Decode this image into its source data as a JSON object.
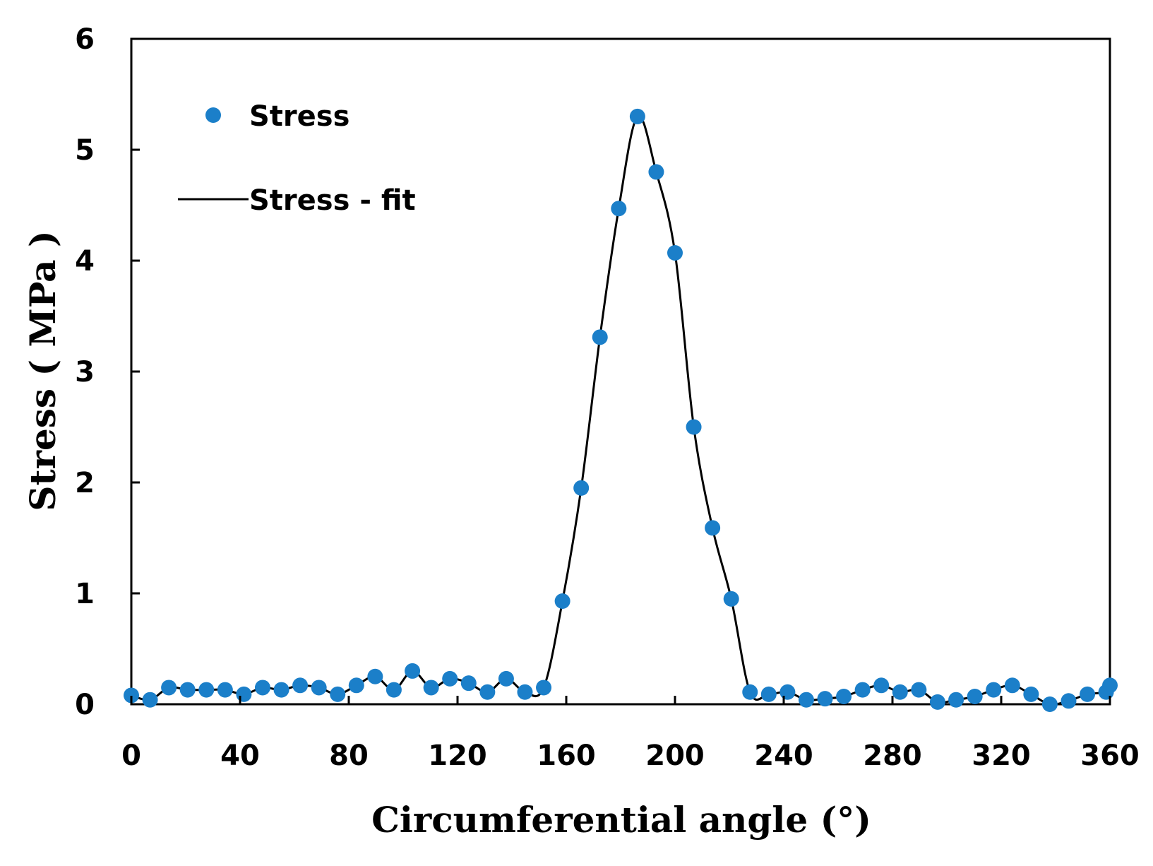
{
  "chart_data": {
    "type": "scatter",
    "title": "",
    "xlabel": "Circumferential angle (°)",
    "ylabel": "Stress ( MPa )",
    "xlim": [
      0,
      360
    ],
    "ylim": [
      0,
      6
    ],
    "xticks": [
      "0",
      "40",
      "80",
      "120",
      "160",
      "200",
      "240",
      "280",
      "320",
      "360"
    ],
    "yticks": [
      "0",
      "1",
      "2",
      "3",
      "4",
      "5",
      "6"
    ],
    "grid": false,
    "legend_position": "top-left",
    "colors": {
      "points": "#1b7fc9",
      "line": "#000000",
      "axes": "#000000"
    },
    "series": [
      {
        "name": "Stress",
        "kind": "scatter",
        "x": [
          0,
          6.9,
          13.8,
          20.7,
          27.6,
          34.5,
          41.4,
          48.3,
          55.2,
          62.1,
          69.0,
          75.9,
          82.8,
          89.7,
          96.6,
          103.4,
          110.3,
          117.2,
          124.1,
          131.0,
          137.9,
          144.8,
          151.7,
          158.6,
          165.5,
          172.4,
          179.3,
          186.2,
          193.1,
          200.0,
          206.9,
          213.8,
          220.7,
          227.6,
          234.5,
          241.4,
          248.3,
          255.2,
          262.1,
          269.0,
          275.9,
          282.8,
          289.7,
          296.6,
          303.4,
          310.3,
          317.2,
          324.1,
          331.0,
          337.9,
          344.8,
          351.7,
          358.6,
          360
        ],
        "y": [
          0.08,
          0.04,
          0.15,
          0.13,
          0.13,
          0.13,
          0.09,
          0.15,
          0.13,
          0.17,
          0.15,
          0.09,
          0.17,
          0.25,
          0.13,
          0.3,
          0.15,
          0.23,
          0.19,
          0.11,
          0.23,
          0.11,
          0.15,
          0.93,
          1.95,
          3.31,
          4.47,
          5.3,
          4.8,
          4.07,
          2.5,
          1.59,
          0.95,
          0.11,
          0.09,
          0.11,
          0.04,
          0.05,
          0.07,
          0.13,
          0.17,
          0.11,
          0.13,
          0.02,
          0.04,
          0.07,
          0.13,
          0.17,
          0.09,
          0.0,
          0.03,
          0.09,
          0.11,
          0.17
        ]
      },
      {
        "name": "Stress - fit",
        "kind": "line",
        "x": [
          0,
          6.9,
          13.8,
          20.7,
          27.6,
          34.5,
          41.4,
          48.3,
          55.2,
          62.1,
          69.0,
          75.9,
          82.8,
          89.7,
          96.6,
          103.4,
          110.3,
          117.2,
          124.1,
          131.0,
          137.9,
          144.8,
          151.7,
          158.6,
          165.5,
          172.4,
          179.3,
          186.2,
          193.1,
          200.0,
          206.9,
          213.8,
          220.7,
          227.6,
          234.5,
          241.4,
          248.3,
          255.2,
          262.1,
          269.0,
          275.9,
          282.8,
          289.7,
          296.6,
          303.4,
          310.3,
          317.2,
          324.1,
          331.0,
          337.9,
          344.8,
          351.7,
          358.6,
          360
        ],
        "y": [
          0.08,
          0.04,
          0.15,
          0.13,
          0.13,
          0.13,
          0.09,
          0.15,
          0.13,
          0.17,
          0.15,
          0.09,
          0.17,
          0.25,
          0.13,
          0.3,
          0.15,
          0.23,
          0.19,
          0.11,
          0.23,
          0.11,
          0.15,
          0.93,
          1.95,
          3.31,
          4.47,
          5.3,
          4.8,
          4.07,
          2.5,
          1.59,
          0.95,
          0.11,
          0.09,
          0.11,
          0.04,
          0.05,
          0.07,
          0.13,
          0.17,
          0.11,
          0.13,
          0.02,
          0.04,
          0.07,
          0.13,
          0.17,
          0.09,
          0.0,
          0.03,
          0.09,
          0.11,
          0.17
        ]
      }
    ]
  }
}
